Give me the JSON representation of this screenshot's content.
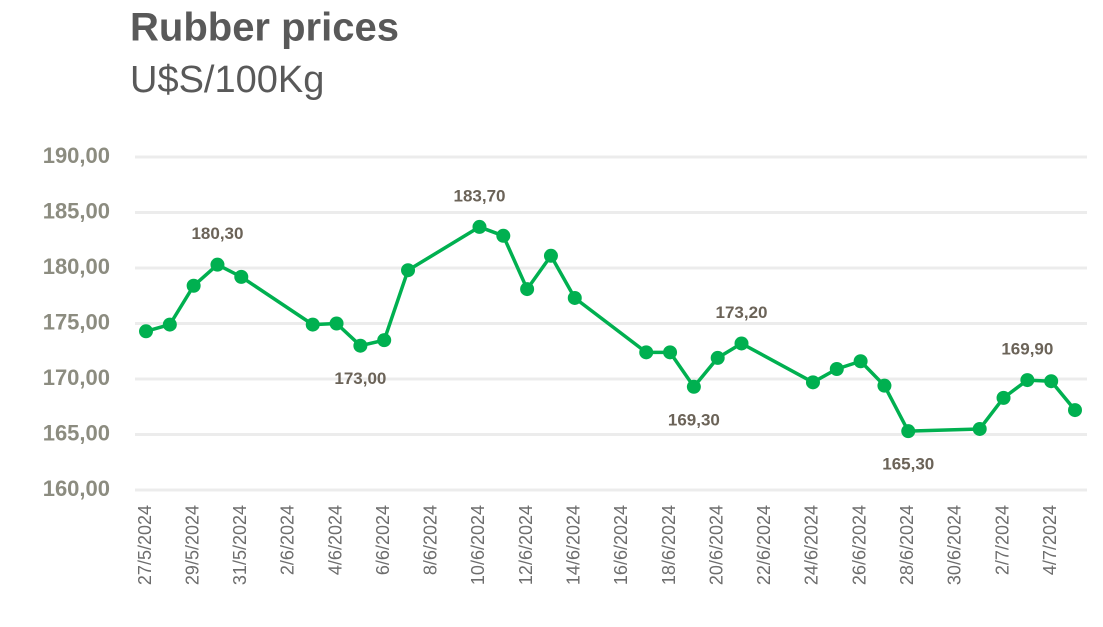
{
  "chart_data": {
    "type": "line",
    "title": "Rubber prices",
    "subtitle": "U$S/100Kg",
    "x": [
      "27/5/2024",
      "28/5/2024",
      "29/5/2024",
      "30/5/2024",
      "31/5/2024",
      "3/6/2024",
      "4/6/2024",
      "5/6/2024",
      "6/6/2024",
      "7/6/2024",
      "10/6/2024",
      "11/6/2024",
      "12/6/2024",
      "13/6/2024",
      "14/6/2024",
      "17/6/2024",
      "18/6/2024",
      "19/6/2024",
      "20/6/2024",
      "21/6/2024",
      "24/6/2024",
      "25/6/2024",
      "26/6/2024",
      "27/6/2024",
      "28/6/2024",
      "1/7/2024",
      "2/7/2024",
      "3/7/2024",
      "4/7/2024",
      "5/7/2024"
    ],
    "series": [
      {
        "name": "Rubber",
        "color": "#00b050",
        "values": [
          174.3,
          174.9,
          178.4,
          180.3,
          179.2,
          174.9,
          175.0,
          173.0,
          173.5,
          179.8,
          183.7,
          182.9,
          178.1,
          181.1,
          177.3,
          172.4,
          172.4,
          169.3,
          171.9,
          173.2,
          169.7,
          170.9,
          171.6,
          169.4,
          165.3,
          165.5,
          168.3,
          169.9,
          169.8,
          167.2
        ],
        "value_labels": [
          null,
          null,
          null,
          "180,30",
          null,
          null,
          null,
          "173,00",
          null,
          null,
          "183,70",
          null,
          null,
          null,
          null,
          null,
          null,
          "169,30",
          null,
          "173,20",
          null,
          null,
          null,
          null,
          "165,30",
          null,
          null,
          "169,90",
          null,
          null
        ]
      }
    ],
    "xlim": [
      "27/5/2024",
      "5/7/2024"
    ],
    "xticks": [
      "27/5/2024",
      "29/5/2024",
      "31/5/2024",
      "2/6/2024",
      "4/6/2024",
      "6/6/2024",
      "8/6/2024",
      "10/6/2024",
      "12/6/2024",
      "14/6/2024",
      "16/6/2024",
      "18/6/2024",
      "20/6/2024",
      "22/6/2024",
      "24/6/2024",
      "26/6/2024",
      "28/6/2024",
      "30/6/2024",
      "2/7/2024",
      "4/7/2024"
    ],
    "ylim": [
      160,
      190
    ],
    "yticks": [
      {
        "value": 160,
        "label": "160,00"
      },
      {
        "value": 165,
        "label": "165,00"
      },
      {
        "value": 170,
        "label": "170,00"
      },
      {
        "value": 175,
        "label": "175,00"
      },
      {
        "value": 180,
        "label": "180,00"
      },
      {
        "value": 185,
        "label": "185,00"
      },
      {
        "value": 190,
        "label": "190,00"
      }
    ],
    "grid": true
  }
}
